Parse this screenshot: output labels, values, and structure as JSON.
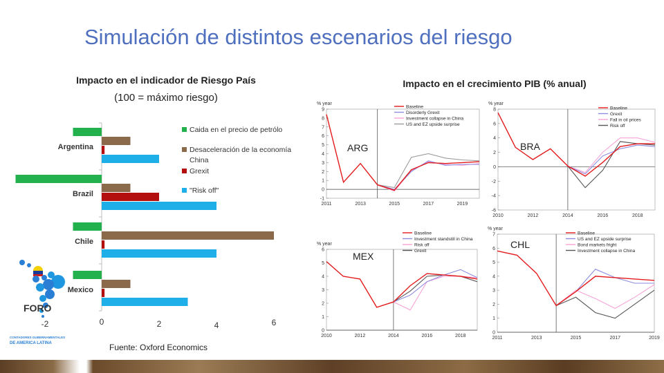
{
  "page_title": "Simulación de distintos escenarios del riesgo",
  "left_chart_title": "Impacto en el indicador de Riesgo País",
  "left_chart_subtitle": "(100 = máximo riesgo)",
  "right_chart_title": "Impacto en el crecimiento PIB (% anual)",
  "source": "Fuente: Oxford Economics",
  "logo": {
    "name": "FORO",
    "sub1": "CONTADORES GUBERNAMENTALES",
    "sub2": "DE AMERICA LATINA"
  },
  "colors": {
    "green": "#22b14c",
    "brown": "#8b6a4b",
    "darkred": "#b40f0f",
    "blue": "#1eaee8",
    "title": "#4f6fbf",
    "baseline": "#e31a1c",
    "grey": "#9a9a9a",
    "purple": "#8b8be0",
    "pink": "#f7a3d6",
    "darkgrey": "#555555"
  },
  "chart_data": [
    {
      "type": "bar",
      "orientation": "horizontal",
      "categories": [
        "Argentina",
        "Brazil",
        "Chile",
        "Mexico"
      ],
      "x_ticks": [
        "-2",
        "0",
        "2",
        "4",
        "6"
      ],
      "xlim": [
        -3,
        7
      ],
      "series": [
        {
          "name": "Caida en el precio de petrólo",
          "color": "#22b14c",
          "values": [
            -1,
            -3,
            -1,
            -1
          ]
        },
        {
          "name": "Desaceleración de la economía China",
          "color": "#8b6a4b",
          "values": [
            1,
            1,
            6,
            1
          ]
        },
        {
          "name": "Grexit",
          "color": "#b40f0f",
          "values": [
            0.1,
            2,
            0.1,
            0.1
          ]
        },
        {
          "name": "\"Risk off\"",
          "color": "#1eaee8",
          "values": [
            2,
            4,
            4,
            3
          ]
        }
      ]
    },
    {
      "type": "line",
      "label": "ARG",
      "ylabel": "% year",
      "x": [
        2011,
        2012,
        2013,
        2014,
        2015,
        2016,
        2017,
        2018,
        2019,
        2020
      ],
      "x_ticks": [
        "2011",
        "2013",
        "2015",
        "2017",
        "2019"
      ],
      "ylim": [
        -1,
        9
      ],
      "y_ticks": [
        "-1",
        "0",
        "1",
        "2",
        "3",
        "4",
        "5",
        "6",
        "7",
        "8",
        "9"
      ],
      "divider_x": 2014,
      "series": [
        {
          "name": "Baseline",
          "color": "#e31a1c",
          "values": [
            8.4,
            0.8,
            2.9,
            0.5,
            -0.1,
            2.2,
            3.0,
            2.9,
            3.0,
            3.1
          ]
        },
        {
          "name": "Disorderly Grexit",
          "color": "#8b8be0",
          "values": [
            null,
            null,
            null,
            0.5,
            0.0,
            2.0,
            3.2,
            2.7,
            2.8,
            2.8
          ]
        },
        {
          "name": "Investment collapse in China",
          "color": "#f7a3d6",
          "values": [
            null,
            null,
            null,
            0.5,
            -0.2,
            2.1,
            3.1,
            2.8,
            2.7,
            2.9
          ]
        },
        {
          "name": "US and EZ upside surprise",
          "color": "#9a9a9a",
          "values": [
            null,
            null,
            null,
            0.5,
            0.2,
            3.6,
            4.0,
            3.5,
            3.3,
            3.2
          ]
        }
      ]
    },
    {
      "type": "line",
      "label": "BRA",
      "ylabel": "% year",
      "x": [
        2010,
        2011,
        2012,
        2013,
        2014,
        2015,
        2016,
        2017,
        2018,
        2019
      ],
      "x_ticks": [
        "2010",
        "2012",
        "2014",
        "2016",
        "2018"
      ],
      "ylim": [
        -6,
        8
      ],
      "y_ticks": [
        "-6",
        "-4",
        "-2",
        "0",
        "2",
        "4",
        "6",
        "8"
      ],
      "divider_x": 2014,
      "series": [
        {
          "name": "Baseline",
          "color": "#e31a1c",
          "values": [
            7.5,
            2.7,
            1.0,
            2.5,
            0.1,
            -1.3,
            0.6,
            2.8,
            3.2,
            3.2
          ]
        },
        {
          "name": "Grexit",
          "color": "#8b8be0",
          "values": [
            null,
            null,
            null,
            null,
            0.1,
            -1.0,
            1.5,
            2.5,
            3.0,
            2.8
          ]
        },
        {
          "name": "Fall in oil prices",
          "color": "#f7a3d6",
          "values": [
            null,
            null,
            null,
            null,
            0.1,
            -0.8,
            2.0,
            4.0,
            4.0,
            3.4
          ]
        },
        {
          "name": "Risk off",
          "color": "#555555",
          "values": [
            null,
            null,
            null,
            null,
            0.1,
            -2.9,
            -0.5,
            3.5,
            3.2,
            3.0
          ]
        }
      ]
    },
    {
      "type": "line",
      "label": "MEX",
      "ylabel": "% year",
      "x": [
        2010,
        2011,
        2012,
        2013,
        2014,
        2015,
        2016,
        2017,
        2018,
        2019
      ],
      "x_ticks": [
        "2010",
        "2012",
        "2014",
        "2016",
        "2018"
      ],
      "ylim": [
        0,
        6
      ],
      "y_ticks": [
        "0",
        "1",
        "2",
        "3",
        "4",
        "5",
        "6"
      ],
      "divider_x": 2014,
      "series": [
        {
          "name": "Baseline",
          "color": "#e31a1c",
          "values": [
            5.1,
            4.0,
            3.8,
            1.7,
            2.1,
            3.3,
            4.2,
            4.1,
            4.0,
            3.8
          ]
        },
        {
          "name": "Investment standstill in China",
          "color": "#8b8be0",
          "values": [
            null,
            null,
            null,
            null,
            2.1,
            2.6,
            3.6,
            4.1,
            4.5,
            3.9
          ]
        },
        {
          "name": "Risk off",
          "color": "#f7a3d6",
          "values": [
            null,
            null,
            null,
            null,
            2.1,
            1.5,
            3.6,
            4.0,
            4.0,
            3.9
          ]
        },
        {
          "name": "Grexit",
          "color": "#555555",
          "values": [
            null,
            null,
            null,
            null,
            2.1,
            2.9,
            4.0,
            4.1,
            4.0,
            3.6
          ]
        }
      ]
    },
    {
      "type": "line",
      "label": "CHL",
      "ylabel": "% year",
      "x": [
        2011,
        2012,
        2013,
        2014,
        2015,
        2016,
        2017,
        2018,
        2019
      ],
      "x_ticks": [
        "2011",
        "2013",
        "2015",
        "2017",
        "2019"
      ],
      "ylim": [
        0,
        7
      ],
      "y_ticks": [
        "0",
        "1",
        "2",
        "3",
        "4",
        "5",
        "6",
        "7"
      ],
      "divider_x": 2014,
      "series": [
        {
          "name": "Baseline",
          "color": "#e31a1c",
          "values": [
            5.8,
            5.5,
            4.2,
            1.9,
            2.9,
            4.0,
            3.9,
            3.8,
            3.7
          ]
        },
        {
          "name": "US and EZ upside surprise",
          "color": "#8b8be0",
          "values": [
            null,
            null,
            null,
            1.9,
            2.9,
            4.5,
            3.9,
            3.5,
            3.5
          ]
        },
        {
          "name": "Bond markets fright",
          "color": "#f7a3d6",
          "values": [
            null,
            null,
            null,
            1.9,
            3.0,
            2.4,
            1.7,
            2.5,
            3.4
          ]
        },
        {
          "name": "Investment collapse in China",
          "color": "#555555",
          "values": [
            null,
            null,
            null,
            1.9,
            2.5,
            1.4,
            1.0,
            2.0,
            3.0
          ]
        }
      ]
    }
  ]
}
